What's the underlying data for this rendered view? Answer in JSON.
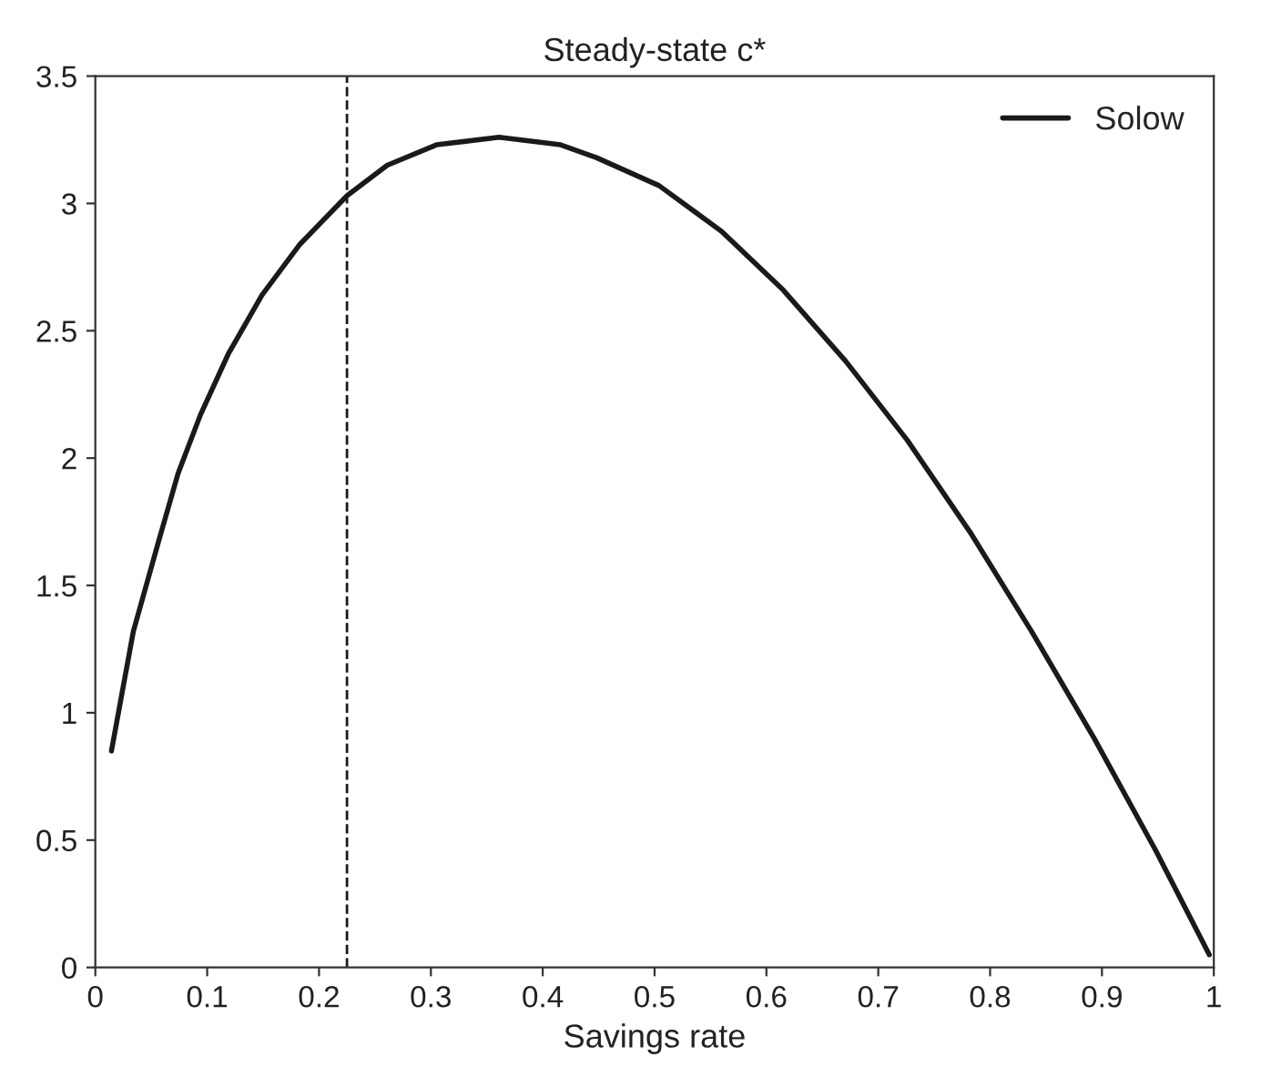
{
  "chart_data": {
    "type": "line",
    "title": "Steady-state c*",
    "xlabel": "Savings rate",
    "x": [
      0.0144,
      0.034,
      0.057,
      0.074,
      0.094,
      0.119,
      0.149,
      0.183,
      0.225,
      0.261,
      0.305,
      0.361,
      0.416,
      0.448,
      0.504,
      0.56,
      0.615,
      0.671,
      0.726,
      0.782,
      0.837,
      0.893,
      0.948,
      0.996
    ],
    "series": [
      {
        "name": "Solow",
        "color": "#1a1a1a",
        "values": [
          0.85,
          1.32,
          1.68,
          1.94,
          2.17,
          2.41,
          2.64,
          2.84,
          3.03,
          3.15,
          3.23,
          3.26,
          3.23,
          3.18,
          3.07,
          2.89,
          2.66,
          2.38,
          2.07,
          1.71,
          1.32,
          0.9,
          0.46,
          0.05
        ]
      }
    ],
    "xlim": [
      0,
      1
    ],
    "xticks": [
      0,
      0.1,
      0.2,
      0.3,
      0.4,
      0.5,
      0.6,
      0.7,
      0.8,
      0.9,
      1
    ],
    "ylim": [
      0,
      3.5
    ],
    "yticks": [
      0,
      0.5,
      1,
      1.5,
      2,
      2.5,
      3,
      3.5
    ],
    "ref_lines": [
      {
        "axis": "x",
        "value": 0.225,
        "color": "#1a1a1a",
        "line_style": "dashed"
      }
    ],
    "legend": "top right",
    "grid": false,
    "marker": "none",
    "line_style": "solid"
  }
}
